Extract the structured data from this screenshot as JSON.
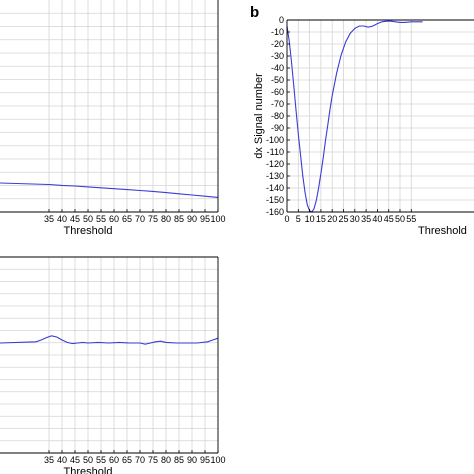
{
  "chart_data": [
    {
      "panel": "",
      "type": "line",
      "xlabel": "Threshold",
      "ylabel": "",
      "xlim": [
        0,
        100
      ],
      "xticks": [
        35,
        40,
        45,
        50,
        55,
        60,
        65,
        70,
        75,
        80,
        85,
        90,
        95,
        100
      ],
      "xtick_labels": [
        "35",
        "40",
        "45",
        "50",
        "55",
        "60",
        "65",
        "70",
        "75",
        "80",
        "85",
        "90",
        "95",
        "100"
      ],
      "grid": true,
      "series": [
        {
          "x": [
            28,
            35,
            40,
            45,
            50,
            55,
            60,
            65,
            70,
            75,
            80,
            85,
            90,
            95,
            100
          ],
          "y": [
            0.0,
            -0.05,
            -0.08,
            -0.1,
            -0.13,
            -0.16,
            -0.19,
            -0.22,
            -0.25,
            -0.28,
            -0.32,
            -0.36,
            -0.4,
            -0.44,
            -0.48
          ]
        }
      ]
    },
    {
      "panel": "b",
      "type": "line",
      "xlabel": "Threshold",
      "ylabel": "dx Signal number",
      "xlim": [
        0,
        60
      ],
      "ylim": [
        -160,
        0
      ],
      "xticks": [
        0,
        5,
        10,
        15,
        20,
        25,
        30,
        35,
        40,
        45,
        50,
        55
      ],
      "xtick_labels": [
        "0",
        "5",
        "10",
        "15",
        "20",
        "25",
        "30",
        "35",
        "40",
        "45",
        "50",
        "55"
      ],
      "yticks": [
        0,
        -10,
        -20,
        -30,
        -40,
        -50,
        -60,
        -70,
        -80,
        -90,
        -100,
        -110,
        -120,
        -130,
        -140,
        -150,
        -160
      ],
      "ytick_labels": [
        "0",
        "-10",
        "-20",
        "-30",
        "-40",
        "-50",
        "-60",
        "-70",
        "-80",
        "-90",
        "-100",
        "-110",
        "-120",
        "-130",
        "-140",
        "-150",
        "-160"
      ],
      "grid": true,
      "series": [
        {
          "x": [
            0,
            1,
            2,
            3,
            4,
            5,
            6,
            7,
            8,
            9,
            10,
            11,
            12,
            13,
            14,
            15,
            16,
            17,
            18,
            19,
            20,
            22,
            24,
            26,
            28,
            30,
            32,
            34,
            36,
            38,
            40,
            42,
            44,
            46,
            48,
            50,
            52,
            55,
            58,
            60
          ],
          "y": [
            -5,
            -18,
            -35,
            -55,
            -75,
            -95,
            -113,
            -130,
            -144,
            -154,
            -159,
            -160,
            -157,
            -150,
            -140,
            -128,
            -115,
            -101,
            -88,
            -75,
            -63,
            -44,
            -29,
            -18,
            -11,
            -7,
            -5,
            -5,
            -6,
            -5,
            -3,
            -1.5,
            -1,
            -1,
            -1.5,
            -2,
            -2,
            -1.5,
            -1.5,
            -1.5
          ]
        }
      ]
    },
    {
      "panel": "",
      "type": "line",
      "xlabel": "Threshold",
      "ylabel": "",
      "xlim": [
        0,
        100
      ],
      "xticks": [
        35,
        40,
        45,
        50,
        55,
        60,
        65,
        70,
        75,
        80,
        85,
        90,
        95,
        100
      ],
      "xtick_labels": [
        "35",
        "40",
        "45",
        "50",
        "55",
        "60",
        "65",
        "70",
        "75",
        "80",
        "85",
        "90",
        "95",
        "100"
      ],
      "grid": true,
      "series": [
        {
          "x": [
            28,
            30,
            32,
            34,
            36,
            38,
            40,
            42,
            44,
            46,
            48,
            50,
            54,
            58,
            62,
            66,
            70,
            72,
            74,
            76,
            78,
            80,
            84,
            88,
            92,
            96,
            98,
            100
          ],
          "y": [
            0.0,
            0.02,
            0.05,
            0.09,
            0.12,
            0.1,
            0.05,
            0.01,
            -0.01,
            0.0,
            0.01,
            0.0,
            0.01,
            0.0,
            0.01,
            0.0,
            0.0,
            -0.02,
            0.0,
            0.02,
            0.03,
            0.01,
            0.0,
            0.0,
            0.0,
            0.02,
            0.05,
            0.08
          ]
        }
      ]
    }
  ]
}
